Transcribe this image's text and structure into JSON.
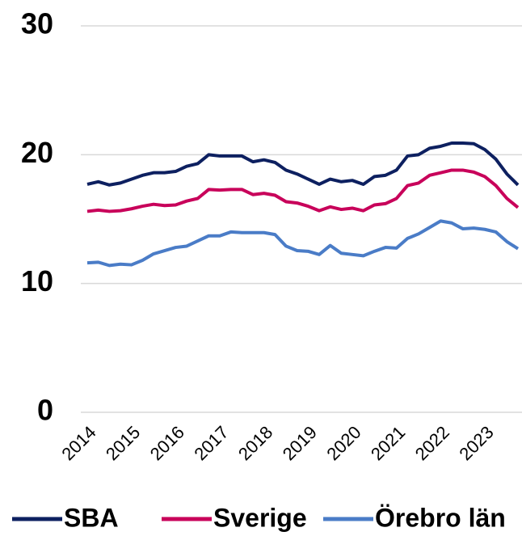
{
  "chart_data": {
    "type": "line",
    "categories": [
      "2014",
      null,
      null,
      null,
      "2015",
      null,
      null,
      null,
      "2016",
      null,
      null,
      null,
      "2017",
      null,
      null,
      null,
      "2018",
      null,
      null,
      null,
      "2019",
      null,
      null,
      null,
      "2020",
      null,
      null,
      null,
      "2021",
      null,
      null,
      null,
      "2022",
      null,
      null,
      null,
      "2023",
      null,
      null,
      null
    ],
    "series": [
      {
        "name": "SBA",
        "color": "#0d2060",
        "values": [
          17.7,
          17.9,
          17.65,
          17.8,
          18.1,
          18.4,
          18.6,
          18.6,
          18.7,
          19.1,
          19.3,
          20.0,
          19.9,
          19.9,
          19.9,
          19.45,
          19.6,
          19.4,
          18.8,
          18.5,
          18.1,
          17.7,
          18.1,
          17.9,
          18.0,
          17.7,
          18.3,
          18.4,
          18.8,
          19.9,
          20.0,
          20.5,
          20.65,
          20.9,
          20.9,
          20.85,
          20.4,
          19.65,
          18.5,
          17.65
        ]
      },
      {
        "name": "Sverige",
        "color": "#c8005a",
        "values": [
          15.6,
          15.7,
          15.6,
          15.65,
          15.8,
          16.0,
          16.15,
          16.05,
          16.1,
          16.4,
          16.6,
          17.3,
          17.25,
          17.3,
          17.3,
          16.9,
          17.0,
          16.85,
          16.35,
          16.25,
          16.0,
          15.65,
          15.95,
          15.75,
          15.85,
          15.65,
          16.1,
          16.2,
          16.6,
          17.6,
          17.8,
          18.4,
          18.6,
          18.8,
          18.8,
          18.65,
          18.3,
          17.6,
          16.6,
          15.9
        ]
      },
      {
        "name": "Örebro län",
        "color": "#4a7cc7",
        "values": [
          11.6,
          11.65,
          11.4,
          11.5,
          11.45,
          11.8,
          12.3,
          12.55,
          12.8,
          12.9,
          13.3,
          13.7,
          13.7,
          14.0,
          13.95,
          13.95,
          13.95,
          13.8,
          12.9,
          12.55,
          12.5,
          12.25,
          12.95,
          12.35,
          12.25,
          12.15,
          12.5,
          12.8,
          12.75,
          13.5,
          13.85,
          14.35,
          14.85,
          14.7,
          14.25,
          14.3,
          14.2,
          14.0,
          13.25,
          12.7
        ]
      }
    ],
    "ylim": [
      0,
      30
    ],
    "yticks": [
      0,
      10,
      20,
      30
    ],
    "grid": true,
    "legend": "bottom"
  }
}
